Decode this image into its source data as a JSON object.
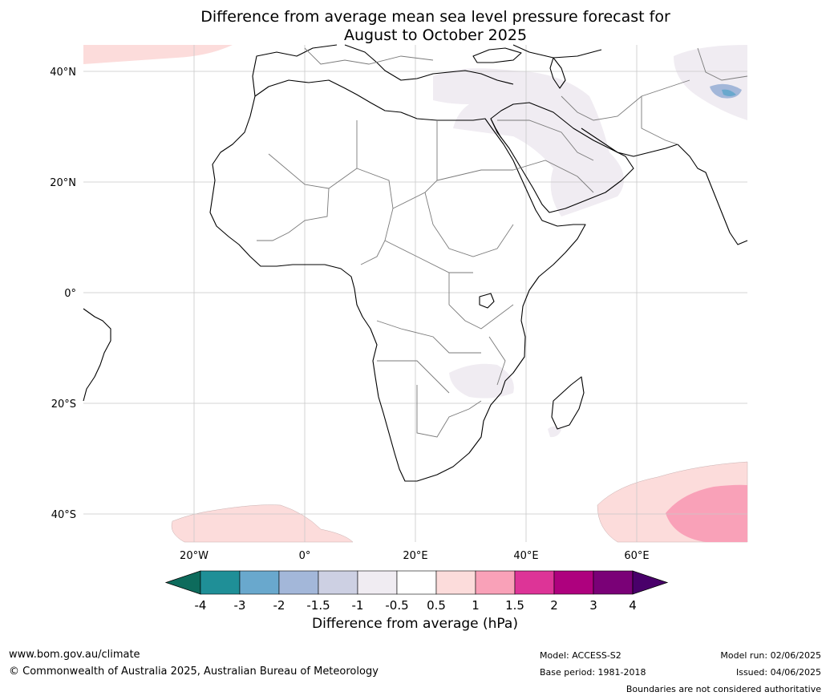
{
  "title": {
    "line1": "Difference from average mean sea level pressure forecast for",
    "line2": "August to October 2025"
  },
  "map": {
    "lat_labels": [
      "40°N",
      "20°N",
      "0°",
      "20°S",
      "40°S"
    ],
    "lon_labels": [
      "20°W",
      "0°",
      "20°E",
      "40°E",
      "60°E"
    ],
    "extent": {
      "lon_min": -40,
      "lon_max": 80,
      "lat_min": -45,
      "lat_max": 45
    },
    "grid": true,
    "projection": "equirectangular"
  },
  "colorbar": {
    "title": "Difference from average (hPa)",
    "ticks": [
      "-4",
      "-3",
      "-2",
      "-1.5",
      "-1",
      "-0.5",
      "0.5",
      "1",
      "1.5",
      "2",
      "3",
      "4"
    ],
    "colors": [
      "#0d6b5c",
      "#1f8f97",
      "#69a8cd",
      "#a3b7d9",
      "#cdd0e3",
      "#f0ecf2",
      "#ffffff",
      "#fcdcdb",
      "#f9a1b8",
      "#dd3497",
      "#ae017e",
      "#7a0177",
      "#49006a"
    ],
    "extend": "both"
  },
  "footer": {
    "url": "www.bom.gov.au/climate",
    "copyright": "© Commonwealth of Australia 2025, Australian Bureau of Meteorology",
    "model": "Model: ACCESS-S2",
    "base_period": "Base period: 1981-2018",
    "model_run": "Model run: 02/06/2025",
    "issued": "Issued: 04/06/2025",
    "disclaimer": "Boundaries are not considered authoritative"
  }
}
